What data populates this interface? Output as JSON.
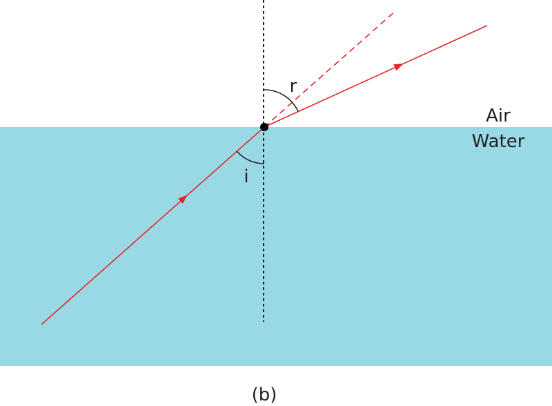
{
  "labels": {
    "refraction_angle": "r",
    "incidence_angle": "i",
    "upper_medium": "Air",
    "lower_medium": "Water",
    "caption": "(b)"
  }
}
